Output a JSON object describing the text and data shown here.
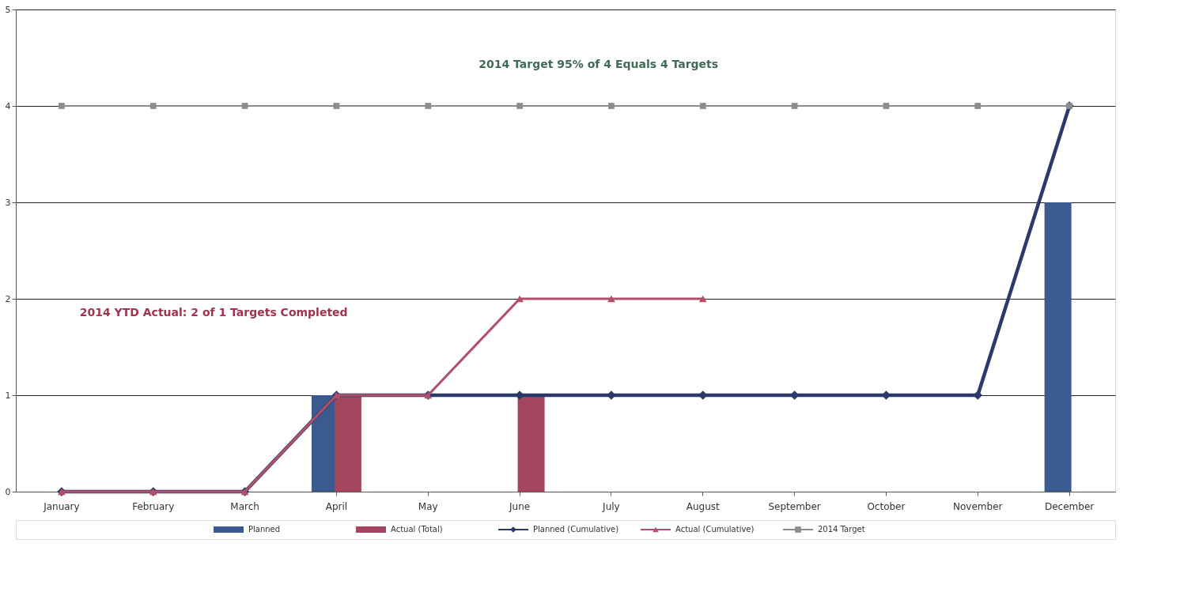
{
  "chart_data": {
    "type": "bar",
    "categories": [
      "January",
      "February",
      "March",
      "April",
      "May",
      "June",
      "July",
      "August",
      "September",
      "October",
      "November",
      "December"
    ],
    "series": [
      {
        "name": "Planned",
        "color": "#3b5a8f",
        "values": [
          null,
          null,
          null,
          1,
          null,
          null,
          null,
          null,
          null,
          null,
          null,
          3
        ]
      },
      {
        "name": "Actual (Total)",
        "color": "#a3455e",
        "values": [
          null,
          null,
          null,
          1,
          null,
          1,
          null,
          null,
          null,
          null,
          null,
          null
        ]
      },
      {
        "name": "Planned (Cumulative)",
        "type": "line",
        "color": "#2b3a6b",
        "marker": "diamond",
        "values": [
          0,
          0,
          0,
          1,
          1,
          1,
          1,
          1,
          1,
          1,
          1,
          4
        ]
      },
      {
        "name": "Actual (Cumulative)",
        "type": "line",
        "color": "#b0506a",
        "marker": "triangle",
        "values": [
          0,
          0,
          0,
          1,
          1,
          2,
          2,
          2,
          null,
          null,
          null,
          null
        ]
      },
      {
        "name": "2014 Target",
        "type": "line",
        "color": "#8c8c8c",
        "marker": "square",
        "values": [
          4,
          4,
          4,
          4,
          4,
          4,
          4,
          4,
          4,
          4,
          4,
          4
        ]
      }
    ],
    "ylim": [
      0,
      5
    ],
    "yticks": [
      0,
      1,
      2,
      3,
      4,
      5
    ],
    "grid": "y",
    "legend": "bottom",
    "annotations": [
      "2014 Target  95% of 4 Equals 4 Targets",
      "2014 YTD Actual:  2 of 1 Targets Completed"
    ]
  }
}
